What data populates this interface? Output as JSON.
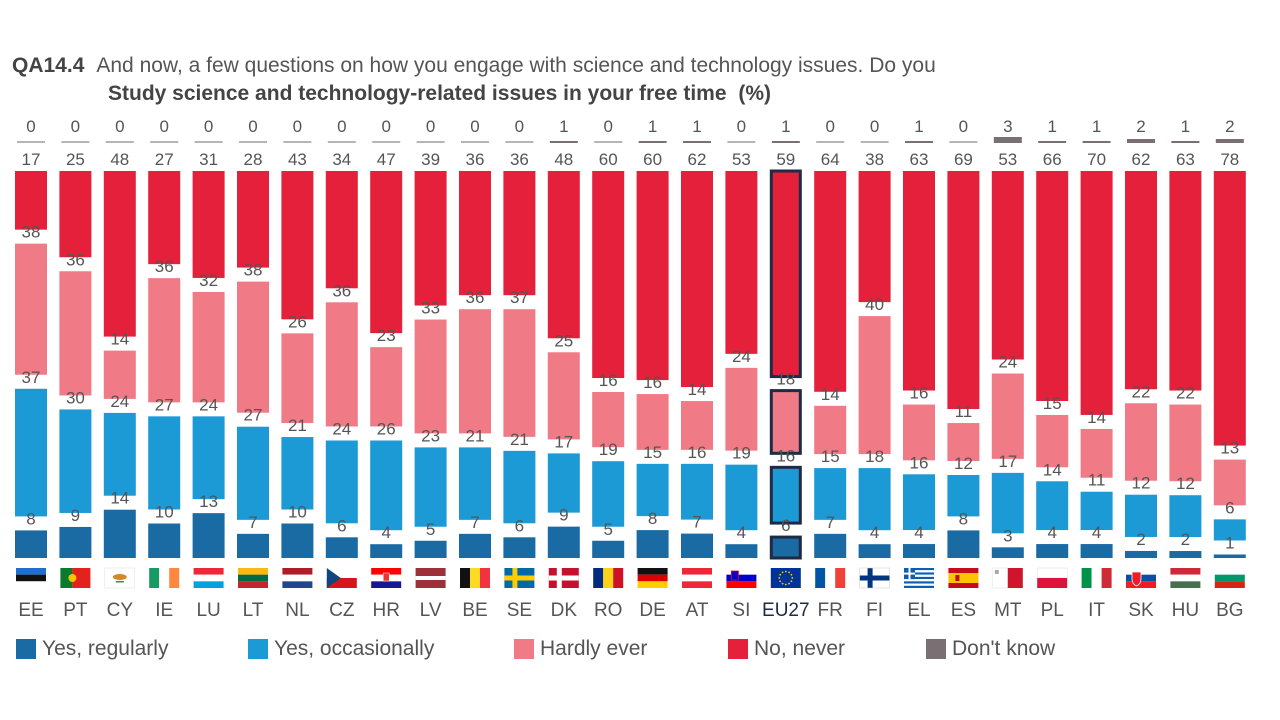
{
  "header": {
    "question_id": "QA14.4",
    "question_text": "And now, a few questions on how you engage with science and technology issues. Do you",
    "subtitle": "Study science and technology-related issues in your free time",
    "unit": "(%)"
  },
  "colors": {
    "yes_regularly": "#1a6aa3",
    "yes_occasionally": "#1b9ad6",
    "hardly_ever": "#f07b86",
    "no_never": "#e4203a",
    "dont_know": "#7a6f72",
    "eu27_outline": "#1f2a44"
  },
  "legend": [
    {
      "key": "yes_regularly",
      "label": "Yes, regularly"
    },
    {
      "key": "yes_occasionally",
      "label": "Yes, occasionally"
    },
    {
      "key": "hardly_ever",
      "label": "Hardly ever"
    },
    {
      "key": "no_never",
      "label": "No, never"
    },
    {
      "key": "dont_know",
      "label": "Don't know"
    }
  ],
  "chart_data": {
    "type": "bar",
    "stacked": true,
    "highlight_category": "EU27",
    "categories": [
      "EE",
      "PT",
      "CY",
      "IE",
      "LU",
      "LT",
      "NL",
      "CZ",
      "HR",
      "LV",
      "BE",
      "SE",
      "DK",
      "RO",
      "DE",
      "AT",
      "SI",
      "EU27",
      "FR",
      "FI",
      "EL",
      "ES",
      "MT",
      "PL",
      "IT",
      "SK",
      "HU",
      "BG"
    ],
    "flag_icons": [
      "flag-ee-icon",
      "flag-pt-icon",
      "flag-cy-icon",
      "flag-ie-icon",
      "flag-lu-icon",
      "flag-lt-icon",
      "flag-nl-icon",
      "flag-cz-icon",
      "flag-hr-icon",
      "flag-lv-icon",
      "flag-be-icon",
      "flag-se-icon",
      "flag-dk-icon",
      "flag-ro-icon",
      "flag-de-icon",
      "flag-at-icon",
      "flag-si-icon",
      "flag-eu-icon",
      "flag-fr-icon",
      "flag-fi-icon",
      "flag-el-icon",
      "flag-es-icon",
      "flag-mt-icon",
      "flag-pl-icon",
      "flag-it-icon",
      "flag-sk-icon",
      "flag-hu-icon",
      "flag-bg-icon"
    ],
    "series": [
      {
        "key": "yes_regularly",
        "name": "Yes, regularly",
        "values": [
          8,
          9,
          14,
          10,
          13,
          7,
          10,
          6,
          4,
          5,
          7,
          6,
          9,
          5,
          8,
          7,
          4,
          6,
          7,
          4,
          4,
          8,
          3,
          4,
          4,
          2,
          2,
          1
        ]
      },
      {
        "key": "yes_occasionally",
        "name": "Yes, occasionally",
        "values": [
          37,
          30,
          24,
          27,
          24,
          27,
          21,
          24,
          26,
          23,
          21,
          21,
          17,
          19,
          15,
          16,
          19,
          16,
          15,
          18,
          16,
          12,
          17,
          14,
          11,
          12,
          12,
          6
        ]
      },
      {
        "key": "hardly_ever",
        "name": "Hardly ever",
        "values": [
          38,
          36,
          14,
          36,
          32,
          38,
          26,
          36,
          23,
          33,
          36,
          37,
          25,
          16,
          16,
          14,
          24,
          18,
          14,
          40,
          16,
          11,
          24,
          15,
          14,
          22,
          22,
          13
        ]
      },
      {
        "key": "no_never",
        "name": "No, never",
        "values": [
          17,
          25,
          48,
          27,
          31,
          28,
          43,
          34,
          47,
          39,
          36,
          36,
          48,
          60,
          60,
          62,
          53,
          59,
          64,
          38,
          63,
          69,
          53,
          66,
          70,
          62,
          63,
          78
        ]
      },
      {
        "key": "dont_know",
        "name": "Don't know",
        "values": [
          0,
          0,
          0,
          0,
          0,
          0,
          0,
          0,
          0,
          0,
          0,
          0,
          1,
          0,
          1,
          1,
          0,
          1,
          0,
          0,
          1,
          0,
          3,
          1,
          1,
          2,
          1,
          2
        ]
      }
    ]
  }
}
